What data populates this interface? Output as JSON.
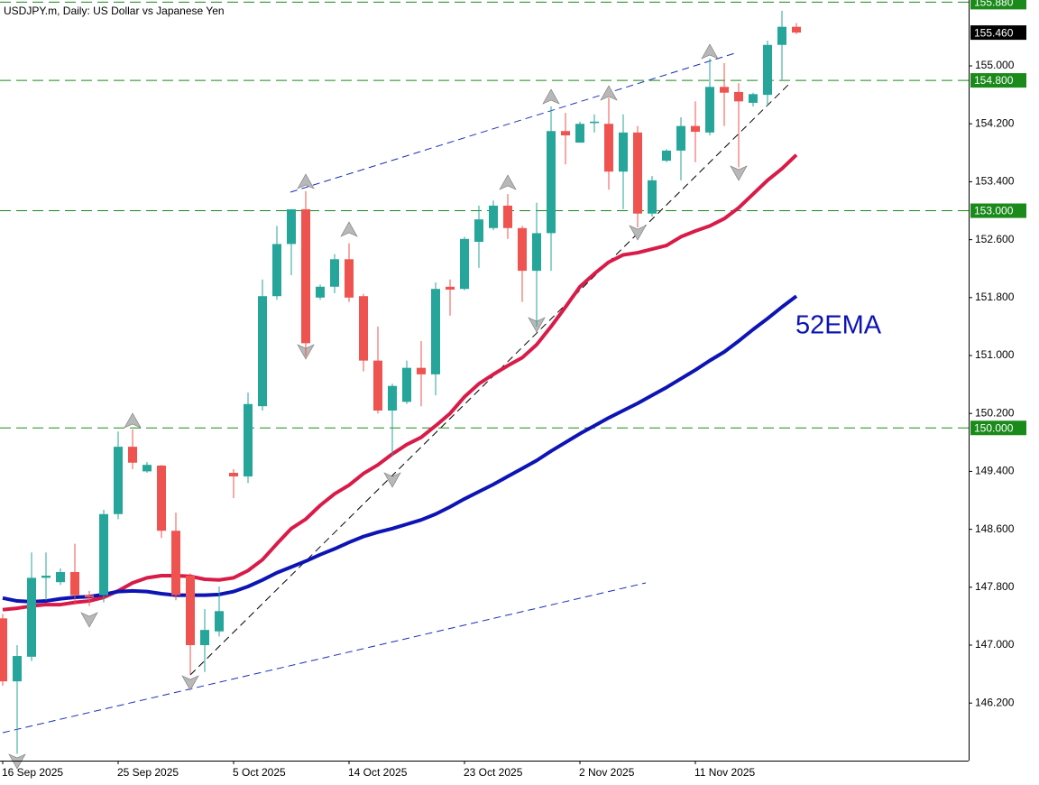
{
  "chart_data": {
    "type": "candlestick",
    "title": "USDJPY.m, Daily:  US Dollar vs Japanese Yen",
    "categories": [
      "16 Sep 2025",
      null,
      null,
      null,
      null,
      null,
      null,
      null,
      "25 Sep 2025",
      null,
      null,
      null,
      null,
      null,
      null,
      null,
      "5 Oct 2025",
      null,
      null,
      null,
      null,
      null,
      null,
      null,
      "14 Oct 2025",
      null,
      null,
      null,
      null,
      null,
      null,
      null,
      "23 Oct 2025",
      null,
      null,
      null,
      null,
      null,
      null,
      null,
      "2 Nov 2025",
      null,
      null,
      null,
      null,
      null,
      null,
      null,
      "11 Nov 2025",
      null,
      null,
      null,
      null,
      null,
      null,
      null
    ],
    "open": [
      147.37,
      146.5,
      146.84,
      147.93,
      147.87,
      148.01,
      147.69,
      147.69,
      148.81,
      149.74,
      149.4,
      149.48,
      148.58,
      147.96,
      147.0,
      147.19,
      149.38,
      149.33,
      150.3,
      151.82,
      152.54,
      153.02,
      151.8,
      151.95,
      152.33,
      151.82,
      150.93,
      150.24,
      150.36,
      150.83,
      150.74,
      151.95,
      151.92,
      152.57,
      152.76,
      153.07,
      152.76,
      152.17,
      152.69,
      154.1,
      153.94,
      154.21,
      154.2,
      153.54,
      154.08,
      152.96,
      153.69,
      153.83,
      154.17,
      154.08,
      154.71,
      154.64,
      154.49,
      154.6,
      155.29,
      155.54
    ],
    "high": [
      147.43,
      147.0,
      148.28,
      148.28,
      148.06,
      148.4,
      147.75,
      148.87,
      149.95,
      149.98,
      149.53,
      149.49,
      148.83,
      147.99,
      147.5,
      147.81,
      149.43,
      150.49,
      152.05,
      152.79,
      153.02,
      153.27,
      151.98,
      152.4,
      152.55,
      151.85,
      151.4,
      150.61,
      150.93,
      151.2,
      152.01,
      152.05,
      152.64,
      153.07,
      153.14,
      153.23,
      152.79,
      153.11,
      154.44,
      154.35,
      154.23,
      154.33,
      154.56,
      154.33,
      154.17,
      153.48,
      153.85,
      154.29,
      154.51,
      155.1,
      155.04,
      154.76,
      154.63,
      155.35,
      155.76,
      155.59
    ],
    "low": [
      146.44,
      145.5,
      146.78,
      147.62,
      147.83,
      147.56,
      147.54,
      147.59,
      148.74,
      149.43,
      149.38,
      148.48,
      147.62,
      146.59,
      146.63,
      147.12,
      149.03,
      149.24,
      150.24,
      151.77,
      152.11,
      150.99,
      151.77,
      151.86,
      151.74,
      150.78,
      150.2,
      149.62,
      150.33,
      150.3,
      150.45,
      151.55,
      151.9,
      152.21,
      152.73,
      152.61,
      151.74,
      151.4,
      152.17,
      153.64,
      153.94,
      154.08,
      153.29,
      153.02,
      152.77,
      152.92,
      153.67,
      153.42,
      153.67,
      154.04,
      154.17,
      153.6,
      154.44,
      154.45,
      154.81,
      155.44
    ],
    "close": [
      146.5,
      146.85,
      147.93,
      147.96,
      148.01,
      147.69,
      147.66,
      148.81,
      149.74,
      149.52,
      149.49,
      148.58,
      147.69,
      147.0,
      147.21,
      147.47,
      149.33,
      150.33,
      151.82,
      152.54,
      153.02,
      151.17,
      151.95,
      152.33,
      151.8,
      150.93,
      150.24,
      150.58,
      150.83,
      150.74,
      151.92,
      151.91,
      152.61,
      152.88,
      153.07,
      152.76,
      152.17,
      152.69,
      154.1,
      154.04,
      154.2,
      154.23,
      153.54,
      154.08,
      152.96,
      153.42,
      153.83,
      154.17,
      154.09,
      154.71,
      154.63,
      154.51,
      154.61,
      155.29,
      155.54,
      155.46
    ],
    "up_color": "#26a69a",
    "down_color": "#ef5350",
    "series": [
      {
        "color": "#d81b48",
        "values": [
          147.49,
          147.51,
          147.54,
          147.56,
          147.56,
          147.59,
          147.61,
          147.66,
          147.75,
          147.86,
          147.93,
          147.96,
          147.96,
          147.95,
          147.91,
          147.9,
          147.93,
          148.03,
          148.18,
          148.4,
          148.61,
          148.74,
          148.93,
          149.09,
          149.21,
          149.37,
          149.49,
          149.64,
          149.77,
          149.87,
          150.03,
          150.2,
          150.43,
          150.61,
          150.74,
          150.86,
          150.97,
          151.15,
          151.4,
          151.67,
          151.95,
          152.13,
          152.29,
          152.39,
          152.42,
          152.47,
          152.52,
          152.64,
          152.72,
          152.79,
          152.89,
          153.04,
          153.23,
          153.42,
          153.58,
          153.77
        ]
      },
      {
        "color": "#0d14b4",
        "values": [
          147.65,
          147.61,
          147.6,
          147.61,
          147.64,
          147.66,
          147.67,
          147.7,
          147.74,
          147.75,
          147.74,
          147.71,
          147.69,
          147.69,
          147.69,
          147.7,
          147.74,
          147.81,
          147.9,
          148.0,
          148.08,
          148.16,
          148.25,
          148.33,
          148.42,
          148.5,
          148.56,
          148.61,
          148.67,
          148.73,
          148.81,
          148.91,
          149.02,
          149.12,
          149.22,
          149.33,
          149.44,
          149.55,
          149.68,
          149.8,
          149.92,
          150.03,
          150.14,
          150.24,
          150.34,
          150.45,
          150.56,
          150.68,
          150.8,
          150.93,
          151.05,
          151.2,
          151.36,
          151.51,
          151.67,
          151.82
        ]
      }
    ],
    "annotation": "52EMA",
    "annotation_color": "#0d14b4",
    "hlines": [
      {
        "value": 155.88,
        "label": "155.880"
      },
      {
        "value": 154.8,
        "label": "154.800"
      },
      {
        "value": 153.0,
        "label": "153.000"
      },
      {
        "value": 150.0,
        "label": "150.000"
      }
    ],
    "hline_color": "#1a8a1a",
    "price": {
      "value": 155.46,
      "label": "155.460"
    },
    "ylim": [
      145.405,
      155.91
    ],
    "yticks": [
      {
        "value": 146.2,
        "label": "146.200"
      },
      {
        "value": 147.0,
        "label": "147.000"
      },
      {
        "value": 147.8,
        "label": "147.800"
      },
      {
        "value": 148.6,
        "label": "148.600"
      },
      {
        "value": 149.4,
        "label": "149.400"
      },
      {
        "value": 150.2,
        "label": "150.200"
      },
      {
        "value": 151.0,
        "label": "151.000"
      },
      {
        "value": 151.8,
        "label": "151.800"
      },
      {
        "value": 152.6,
        "label": "152.600"
      },
      {
        "value": 153.4,
        "label": "153.400"
      },
      {
        "value": 154.2,
        "label": "154.200"
      },
      {
        "value": 155.0,
        "label": "155.000"
      }
    ]
  }
}
